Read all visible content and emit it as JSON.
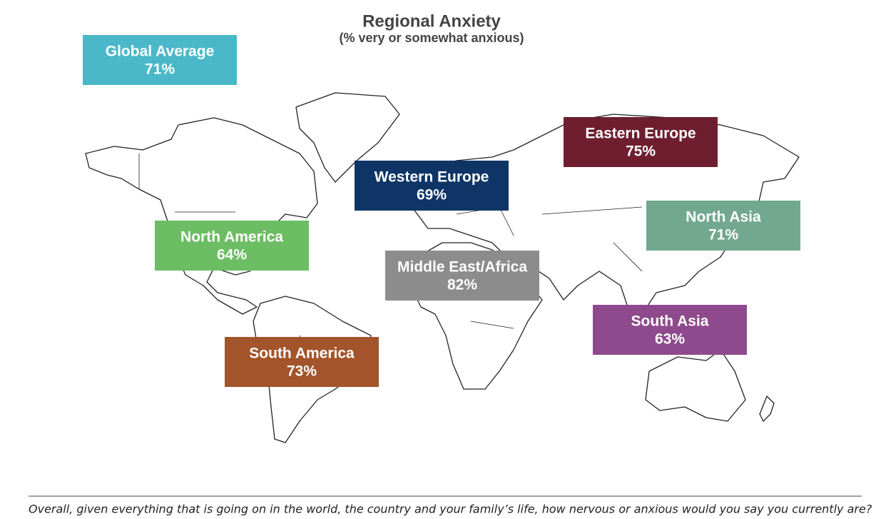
{
  "title": "Regional Anxiety",
  "subtitle": "(% very or somewhat anxious)",
  "regions": [
    {
      "name": "Global Average",
      "value": "71%"
    },
    {
      "name": "Eastern Europe",
      "value": "75%"
    },
    {
      "name": "Western Europe",
      "value": "69%"
    },
    {
      "name": "North Asia",
      "value": "71%"
    },
    {
      "name": "North America",
      "value": "64%"
    },
    {
      "name": "Middle East/Africa",
      "value": "82%"
    },
    {
      "name": "South Asia",
      "value": "63%"
    },
    {
      "name": "South America",
      "value": "73%"
    }
  ],
  "footnote": "Overall, given everything that is going on in the world, the country and your family’s life, how nervous or anxious would you say you currently are?"
}
